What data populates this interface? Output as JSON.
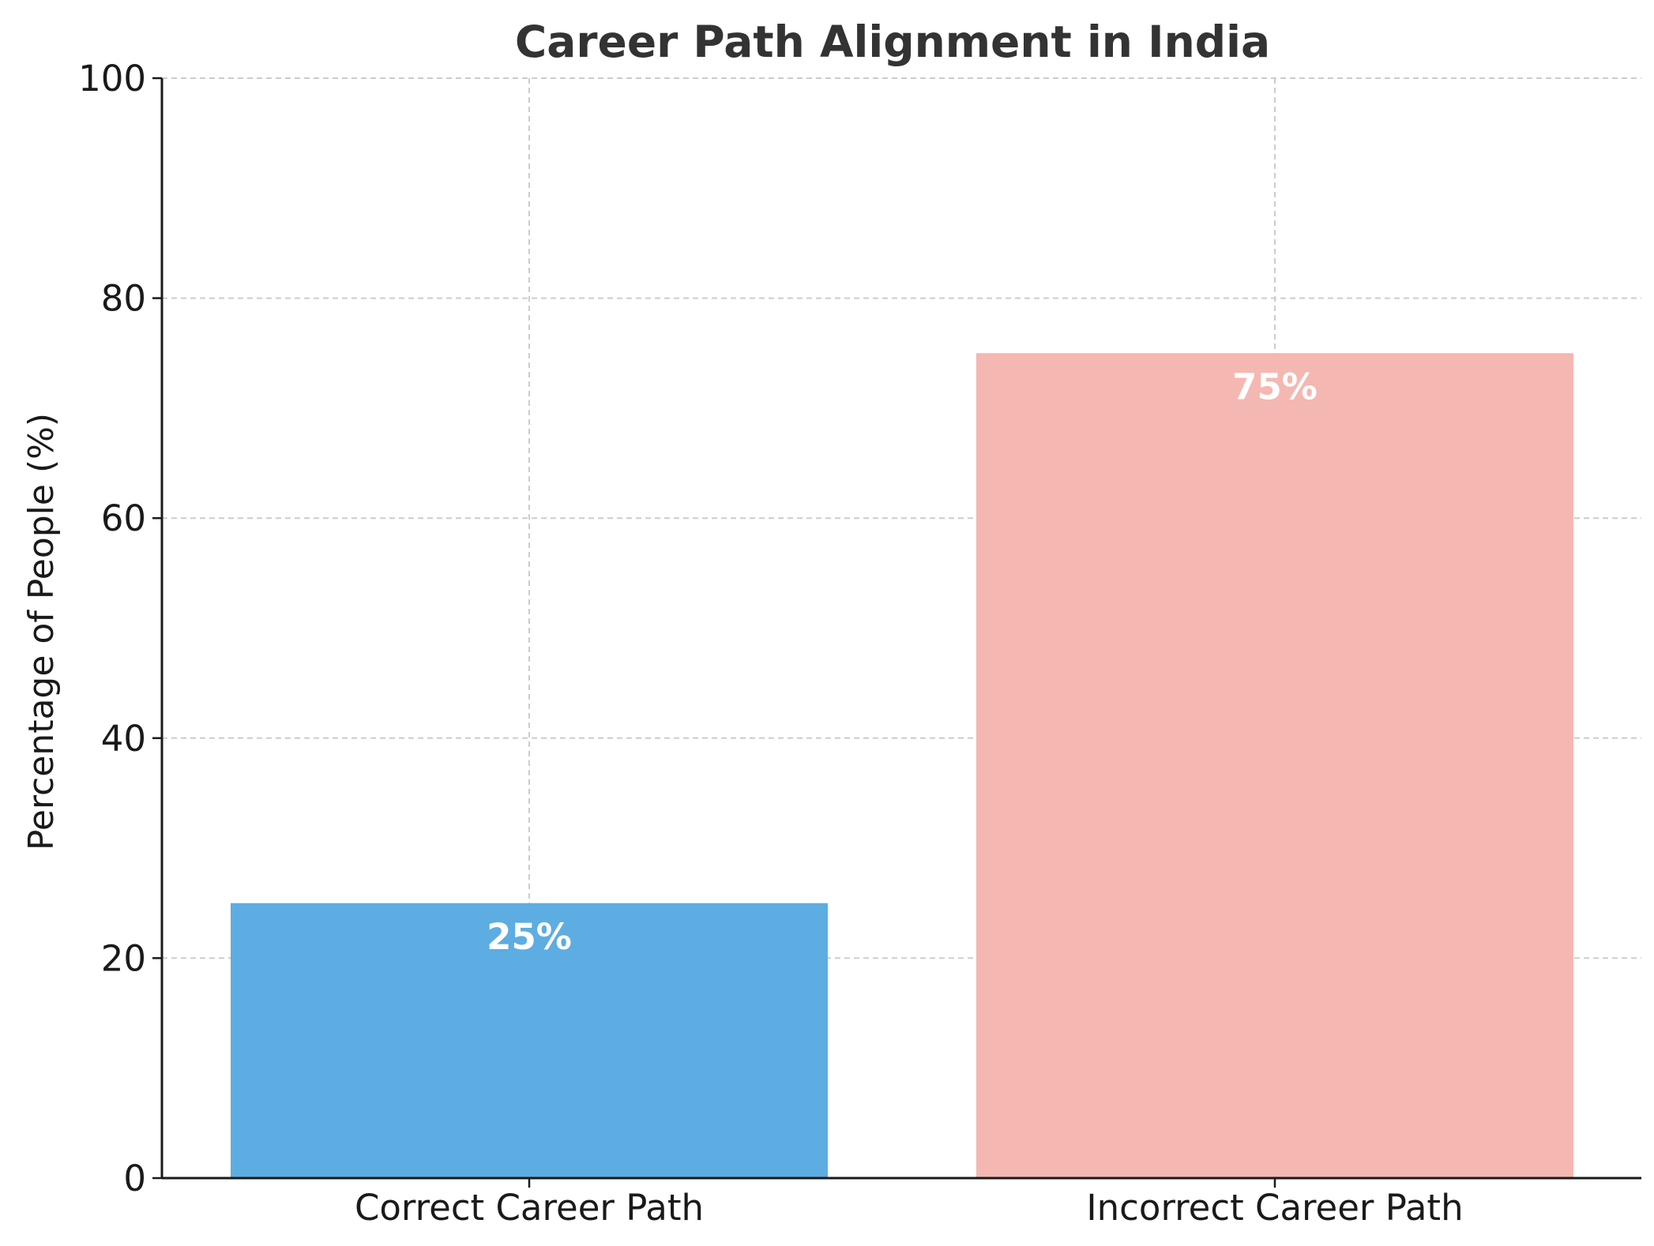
{
  "chart_data": {
    "type": "bar",
    "title": "Career Path Alignment in India",
    "xlabel": "",
    "ylabel": "Percentage of People (%)",
    "categories": [
      "Correct Career Path",
      "Incorrect Career Path"
    ],
    "values": [
      25,
      75
    ],
    "data_labels": [
      "25%",
      "75%"
    ],
    "colors": [
      "#5DADE2",
      "#F5B7B1"
    ],
    "ylim": [
      0,
      100
    ],
    "yticks": [
      0,
      20,
      40,
      60,
      80,
      100
    ],
    "grid": true,
    "legend": "none"
  }
}
